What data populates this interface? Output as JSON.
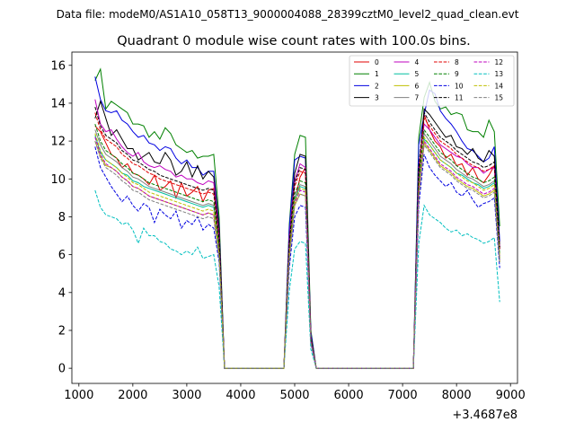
{
  "chart_data": {
    "type": "line",
    "suptitle": "Data file: modeM0/AS1A10_058T13_9000004088_28399cztM0_level2_quad_clean.evt",
    "title": "Quadrant 0 module wise count rates with 100.0s bins.",
    "xlabel": "",
    "ylabel": "",
    "x_offset_label": "+3.4687e8",
    "xlim": [
      870,
      9130
    ],
    "ylim": [
      -0.8,
      16.7
    ],
    "xticks": [
      1000,
      2000,
      3000,
      4000,
      5000,
      6000,
      7000,
      8000,
      9000
    ],
    "yticks": [
      0,
      2,
      4,
      6,
      8,
      10,
      12,
      14,
      16
    ],
    "legend_position": "top-right",
    "x": [
      1300,
      1400,
      1500,
      1600,
      1700,
      1800,
      1900,
      2000,
      2100,
      2200,
      2300,
      2400,
      2500,
      2600,
      2700,
      2800,
      2900,
      3000,
      3100,
      3200,
      3300,
      3400,
      3500,
      3600,
      3700,
      3800,
      3900,
      4000,
      4100,
      4200,
      4300,
      4400,
      4500,
      4600,
      4700,
      4800,
      4900,
      5000,
      5100,
      5200,
      5300,
      5400,
      5500,
      5600,
      5700,
      5800,
      5900,
      6000,
      6100,
      6200,
      6300,
      6400,
      6500,
      6600,
      6700,
      6800,
      6900,
      7000,
      7100,
      7200,
      7300,
      7400,
      7500,
      7600,
      7700,
      7800,
      7900,
      8000,
      8100,
      8200,
      8300,
      8400,
      8500,
      8600,
      8700,
      8800
    ],
    "segments": [
      [
        0,
        25
      ],
      [
        26,
        37
      ],
      [
        38,
        59
      ],
      [
        60,
        75
      ]
    ],
    "series": [
      {
        "name": "0",
        "color": "#e00000",
        "dashed": false,
        "active": [
          12.8,
          12.5,
          11.9,
          11.3,
          11.1,
          10.6,
          10.8,
          10.3,
          10.2,
          10.0,
          9.7,
          10.2,
          9.4,
          9.6,
          9.9,
          9.0,
          9.8,
          9.1,
          9.3,
          9.6,
          8.8,
          9.4,
          9.5,
          6.7
        ],
        "peak": [
          6.3,
          8.8,
          10.1,
          10.6,
          1.6
        ],
        "flare": [
          10.3,
          13.4,
          12.6,
          12.0,
          11.7,
          11.1,
          11.3,
          10.7,
          10.8,
          10.2,
          10.6,
          10.0,
          9.8,
          10.2,
          10.7,
          6.4
        ]
      },
      {
        "name": "1",
        "color": "#008000",
        "dashed": false,
        "active": [
          15.2,
          15.8,
          13.7,
          14.1,
          13.9,
          13.7,
          13.5,
          12.9,
          12.9,
          12.8,
          12.2,
          12.5,
          12.1,
          12.7,
          12.4,
          11.8,
          11.6,
          11.4,
          11.5,
          11.1,
          11.2,
          11.2,
          11.3,
          8.0
        ],
        "peak": [
          7.6,
          11.3,
          12.3,
          12.2,
          2.0
        ],
        "flare": [
          12.2,
          14.3,
          15.1,
          14.1,
          13.7,
          13.8,
          13.4,
          13.5,
          13.4,
          12.6,
          12.5,
          12.5,
          12.2,
          13.1,
          12.5,
          7.5
        ]
      },
      {
        "name": "2",
        "color": "#0000e0",
        "dashed": false,
        "active": [
          15.4,
          14.2,
          13.6,
          13.5,
          13.6,
          13.1,
          12.9,
          12.5,
          12.2,
          12.3,
          11.9,
          11.8,
          11.5,
          11.7,
          11.6,
          11.1,
          10.8,
          11.0,
          10.6,
          10.6,
          10.2,
          10.4,
          10.4,
          7.5
        ],
        "peak": [
          7.4,
          11.0,
          11.2,
          11.1,
          1.9
        ],
        "flare": [
          11.8,
          13.4,
          14.7,
          14.5,
          13.6,
          13.2,
          12.9,
          12.5,
          12.0,
          11.6,
          11.5,
          11.2,
          10.9,
          11.1,
          11.7,
          6.7
        ]
      },
      {
        "name": "3",
        "color": "#000000",
        "dashed": false,
        "active": [
          13.2,
          14.1,
          13.2,
          12.3,
          12.6,
          12.1,
          11.6,
          11.6,
          11.0,
          11.2,
          11.4,
          10.9,
          10.8,
          11.4,
          11.0,
          10.2,
          10.4,
          10.9,
          10.1,
          10.7,
          10.0,
          10.4,
          10.1,
          7.4
        ],
        "peak": [
          6.8,
          10.3,
          11.3,
          11.2,
          1.7
        ],
        "flare": [
          10.2,
          13.7,
          13.4,
          13.0,
          12.6,
          12.2,
          12.3,
          11.7,
          11.6,
          11.3,
          11.6,
          11.1,
          10.9,
          11.5,
          11.2,
          6.3
        ]
      },
      {
        "name": "4",
        "color": "#bf00bf",
        "dashed": false,
        "active": [
          14.2,
          12.9,
          12.5,
          12.6,
          12.1,
          11.7,
          11.4,
          11.2,
          11.4,
          10.9,
          10.7,
          10.6,
          10.7,
          10.5,
          10.4,
          10.1,
          10.2,
          10.0,
          10.0,
          9.8,
          9.7,
          9.9,
          9.8,
          7.0
        ],
        "peak": [
          6.9,
          9.9,
          10.8,
          10.6,
          1.6
        ],
        "flare": [
          10.6,
          12.9,
          12.6,
          12.2,
          11.8,
          11.6,
          11.4,
          11.2,
          11.1,
          10.8,
          10.6,
          10.6,
          10.3,
          10.5,
          10.6,
          6.3
        ]
      },
      {
        "name": "5",
        "color": "#00bfa0",
        "dashed": false,
        "active": [
          12.3,
          11.4,
          11.0,
          10.8,
          10.6,
          10.3,
          10.2,
          9.9,
          9.8,
          9.6,
          9.5,
          9.4,
          9.3,
          9.2,
          9.1,
          9.0,
          8.9,
          8.8,
          8.7,
          8.6,
          8.5,
          8.6,
          8.5,
          6.2
        ],
        "peak": [
          6.0,
          8.9,
          9.6,
          9.5,
          1.5
        ],
        "flare": [
          9.5,
          12.1,
          11.8,
          11.4,
          11.0,
          10.8,
          10.6,
          10.3,
          10.2,
          10.0,
          9.8,
          9.7,
          9.5,
          9.6,
          9.8,
          5.8
        ]
      },
      {
        "name": "6",
        "color": "#bfbf00",
        "dashed": false,
        "active": [
          12.0,
          11.2,
          10.7,
          10.6,
          10.4,
          10.1,
          9.9,
          9.6,
          9.5,
          9.3,
          9.1,
          9.0,
          8.9,
          8.8,
          8.7,
          8.6,
          8.5,
          8.4,
          8.3,
          8.2,
          8.1,
          8.2,
          8.1,
          5.9
        ],
        "peak": [
          5.8,
          8.6,
          9.2,
          9.1,
          1.4
        ],
        "flare": [
          9.1,
          11.9,
          11.5,
          11.1,
          10.7,
          10.5,
          10.3,
          10.0,
          9.8,
          9.6,
          9.5,
          9.3,
          9.1,
          9.2,
          9.4,
          5.6
        ]
      },
      {
        "name": "7",
        "color": "#808080",
        "dashed": false,
        "active": [
          12.6,
          11.8,
          11.3,
          11.1,
          10.9,
          10.6,
          10.4,
          10.1,
          10.0,
          9.8,
          9.6,
          9.5,
          9.4,
          9.3,
          9.2,
          9.1,
          9.0,
          8.9,
          8.8,
          8.7,
          8.6,
          8.7,
          8.6,
          6.3
        ],
        "peak": [
          6.1,
          9.0,
          9.7,
          9.6,
          1.5
        ],
        "flare": [
          9.6,
          12.4,
          12.0,
          11.6,
          11.2,
          11.0,
          10.8,
          10.5,
          10.3,
          10.1,
          10.0,
          9.8,
          9.6,
          9.7,
          9.9,
          5.9
        ]
      },
      {
        "name": "8",
        "color": "#e00000",
        "dashed": true,
        "active": [
          13.5,
          12.6,
          12.1,
          11.9,
          11.7,
          11.3,
          11.1,
          10.8,
          10.7,
          10.5,
          10.3,
          10.2,
          10.0,
          9.9,
          9.8,
          9.7,
          9.6,
          9.5,
          9.4,
          9.3,
          9.2,
          9.3,
          9.2,
          6.6
        ],
        "peak": [
          6.5,
          9.6,
          10.4,
          10.3,
          1.6
        ],
        "flare": [
          10.4,
          13.2,
          12.8,
          12.4,
          12.0,
          11.8,
          11.6,
          11.3,
          11.1,
          10.9,
          10.7,
          10.6,
          10.4,
          10.5,
          10.7,
          6.3
        ]
      },
      {
        "name": "9",
        "color": "#008000",
        "dashed": true,
        "active": [
          12.9,
          12.0,
          11.5,
          11.3,
          11.1,
          10.8,
          10.6,
          10.3,
          10.2,
          10.0,
          9.8,
          9.7,
          9.6,
          9.5,
          9.4,
          9.3,
          9.2,
          9.1,
          9.0,
          8.9,
          8.8,
          8.9,
          8.8,
          6.4
        ],
        "peak": [
          6.2,
          9.2,
          9.9,
          9.8,
          1.5
        ],
        "flare": [
          9.9,
          12.6,
          12.2,
          11.8,
          11.4,
          11.2,
          11.0,
          10.7,
          10.5,
          10.3,
          10.1,
          10.0,
          9.8,
          9.9,
          10.1,
          6.0
        ]
      },
      {
        "name": "10",
        "color": "#0000e0",
        "dashed": true,
        "active": [
          11.7,
          10.6,
          10.1,
          9.6,
          9.2,
          8.8,
          9.1,
          8.6,
          8.3,
          8.7,
          8.5,
          7.7,
          8.4,
          8.1,
          7.9,
          8.3,
          7.4,
          7.8,
          7.6,
          8.0,
          7.3,
          7.6,
          7.4,
          5.6
        ],
        "peak": [
          5.3,
          8.0,
          8.6,
          8.5,
          1.3
        ],
        "flare": [
          8.6,
          11.3,
          10.6,
          10.2,
          9.9,
          9.6,
          9.8,
          9.3,
          9.1,
          9.4,
          8.9,
          8.5,
          8.7,
          8.8,
          9.0,
          5.3
        ]
      },
      {
        "name": "11",
        "color": "#000000",
        "dashed": true,
        "active": [
          13.8,
          12.8,
          12.3,
          12.1,
          11.9,
          11.5,
          11.3,
          11.0,
          10.9,
          10.7,
          10.5,
          10.4,
          10.2,
          10.1,
          10.0,
          9.9,
          9.8,
          9.7,
          9.6,
          9.5,
          9.4,
          9.5,
          9.4,
          6.8
        ],
        "peak": [
          6.6,
          9.8,
          10.6,
          10.5,
          1.6
        ],
        "flare": [
          10.6,
          13.5,
          13.0,
          12.6,
          12.2,
          12.0,
          11.8,
          11.5,
          11.3,
          11.1,
          10.9,
          10.8,
          10.6,
          10.7,
          10.9,
          6.4
        ]
      },
      {
        "name": "12",
        "color": "#bf00bf",
        "dashed": true,
        "active": [
          12.2,
          11.3,
          10.8,
          10.6,
          10.4,
          10.1,
          9.9,
          9.6,
          9.5,
          9.3,
          9.1,
          9.0,
          8.9,
          8.8,
          8.7,
          8.6,
          8.5,
          8.4,
          8.3,
          8.2,
          8.1,
          8.2,
          8.1,
          5.9
        ],
        "peak": [
          5.9,
          8.7,
          9.4,
          9.3,
          1.4
        ],
        "flare": [
          9.3,
          12.0,
          11.6,
          11.2,
          10.8,
          10.6,
          10.4,
          10.1,
          9.9,
          9.7,
          9.6,
          9.4,
          9.2,
          9.3,
          9.5,
          5.7
        ]
      },
      {
        "name": "13",
        "color": "#00bfbf",
        "dashed": true,
        "active": [
          9.4,
          8.5,
          8.1,
          8.0,
          7.9,
          7.6,
          7.7,
          7.3,
          6.6,
          7.4,
          7.0,
          7.0,
          6.7,
          6.6,
          6.3,
          6.2,
          6.0,
          6.2,
          6.0,
          6.4,
          5.8,
          5.9,
          6.0,
          4.3
        ],
        "peak": [
          4.1,
          6.3,
          6.7,
          6.6,
          1.0
        ],
        "flare": [
          6.6,
          8.6,
          8.1,
          7.9,
          7.7,
          7.4,
          7.2,
          7.3,
          7.0,
          7.1,
          6.9,
          6.8,
          6.6,
          6.7,
          6.9,
          3.5
        ]
      },
      {
        "name": "14",
        "color": "#bfbf00",
        "dashed": true,
        "active": [
          12.4,
          11.5,
          11.0,
          10.8,
          10.6,
          10.3,
          10.1,
          9.8,
          9.7,
          9.5,
          9.3,
          9.2,
          9.1,
          9.0,
          8.9,
          8.8,
          8.7,
          8.6,
          8.5,
          8.4,
          8.3,
          8.4,
          8.3,
          6.0
        ],
        "peak": [
          6.0,
          8.8,
          9.5,
          9.4,
          1.4
        ],
        "flare": [
          9.4,
          12.2,
          11.8,
          11.4,
          11.0,
          10.8,
          10.6,
          10.3,
          10.1,
          9.9,
          9.8,
          9.6,
          9.4,
          9.5,
          9.7,
          5.8
        ]
      },
      {
        "name": "15",
        "color": "#808080",
        "dashed": true,
        "active": [
          12.0,
          11.1,
          10.6,
          10.4,
          10.2,
          9.9,
          9.7,
          9.4,
          9.3,
          9.1,
          8.9,
          8.8,
          8.7,
          8.6,
          8.5,
          8.4,
          8.3,
          8.2,
          8.1,
          8.0,
          7.9,
          8.0,
          7.9,
          5.8
        ],
        "peak": [
          5.8,
          8.6,
          9.2,
          9.1,
          1.4
        ],
        "flare": [
          9.2,
          11.8,
          11.4,
          11.0,
          10.6,
          10.4,
          10.2,
          9.9,
          9.7,
          9.5,
          9.4,
          9.2,
          9.0,
          9.1,
          9.3,
          5.6
        ]
      }
    ]
  }
}
